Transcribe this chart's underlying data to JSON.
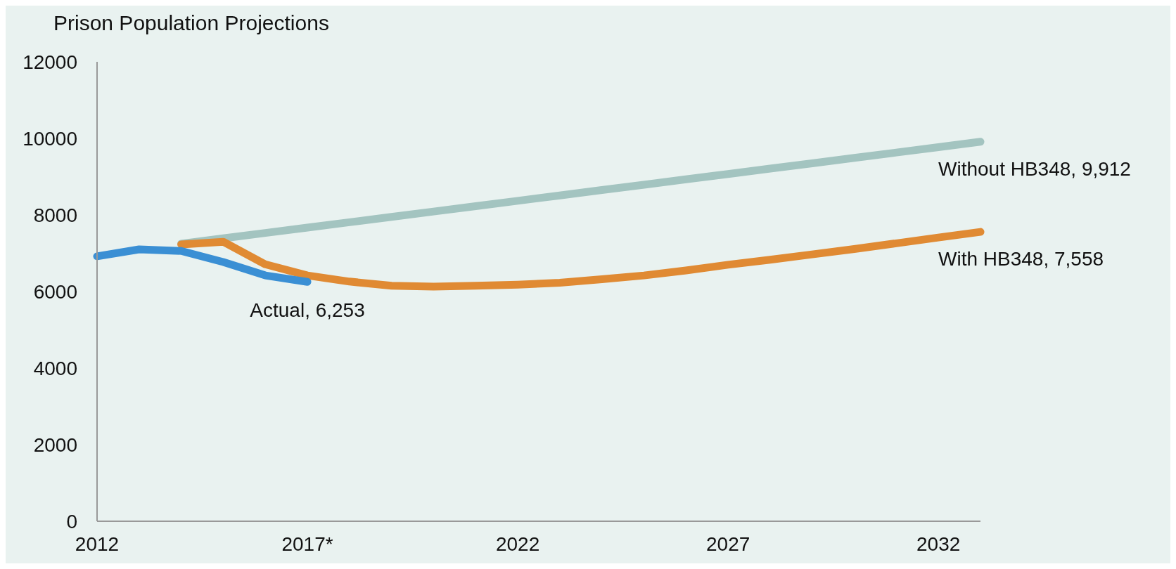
{
  "chart_data": {
    "type": "line",
    "title": "Prison Population Projections",
    "categories": [
      "2012",
      null,
      null,
      null,
      null,
      "2017*",
      null,
      null,
      null,
      null,
      "2022",
      null,
      null,
      null,
      null,
      "2027",
      null,
      null,
      null,
      null,
      "2032",
      null
    ],
    "series": [
      {
        "color": "#a3c4c0",
        "values": [
          null,
          null,
          7250,
          7390,
          7530,
          7670,
          7810,
          7950,
          8090,
          8230,
          8370,
          8510,
          8650,
          8790,
          8930,
          9070,
          9210,
          9350,
          9490,
          9630,
          9770,
          9912
        ]
      },
      {
        "color": "#e08a33",
        "values": [
          null,
          null,
          7230,
          7300,
          6710,
          6420,
          6260,
          6150,
          6130,
          6150,
          6180,
          6230,
          6320,
          6420,
          6550,
          6700,
          6830,
          6970,
          7110,
          7260,
          7410,
          7558
        ]
      },
      {
        "color": "#3a8fd4",
        "values": [
          6920,
          7100,
          7060,
          6770,
          6420,
          6253,
          null,
          null,
          null,
          null,
          null,
          null,
          null,
          null,
          null,
          null,
          null,
          null,
          null,
          null,
          null,
          null
        ]
      }
    ],
    "annotations": [
      "Without HB348,  9,912",
      "With HB348,  7,558",
      {
        "text": "Actual, 6,253",
        "x": "2017*",
        "y": 6253
      }
    ],
    "ylim": [
      0,
      12000
    ],
    "yticks": [
      0,
      2000,
      4000,
      6000,
      8000,
      10000,
      12000
    ],
    "grid": false,
    "legend": false,
    "marker": "none",
    "line_style": "solid"
  }
}
